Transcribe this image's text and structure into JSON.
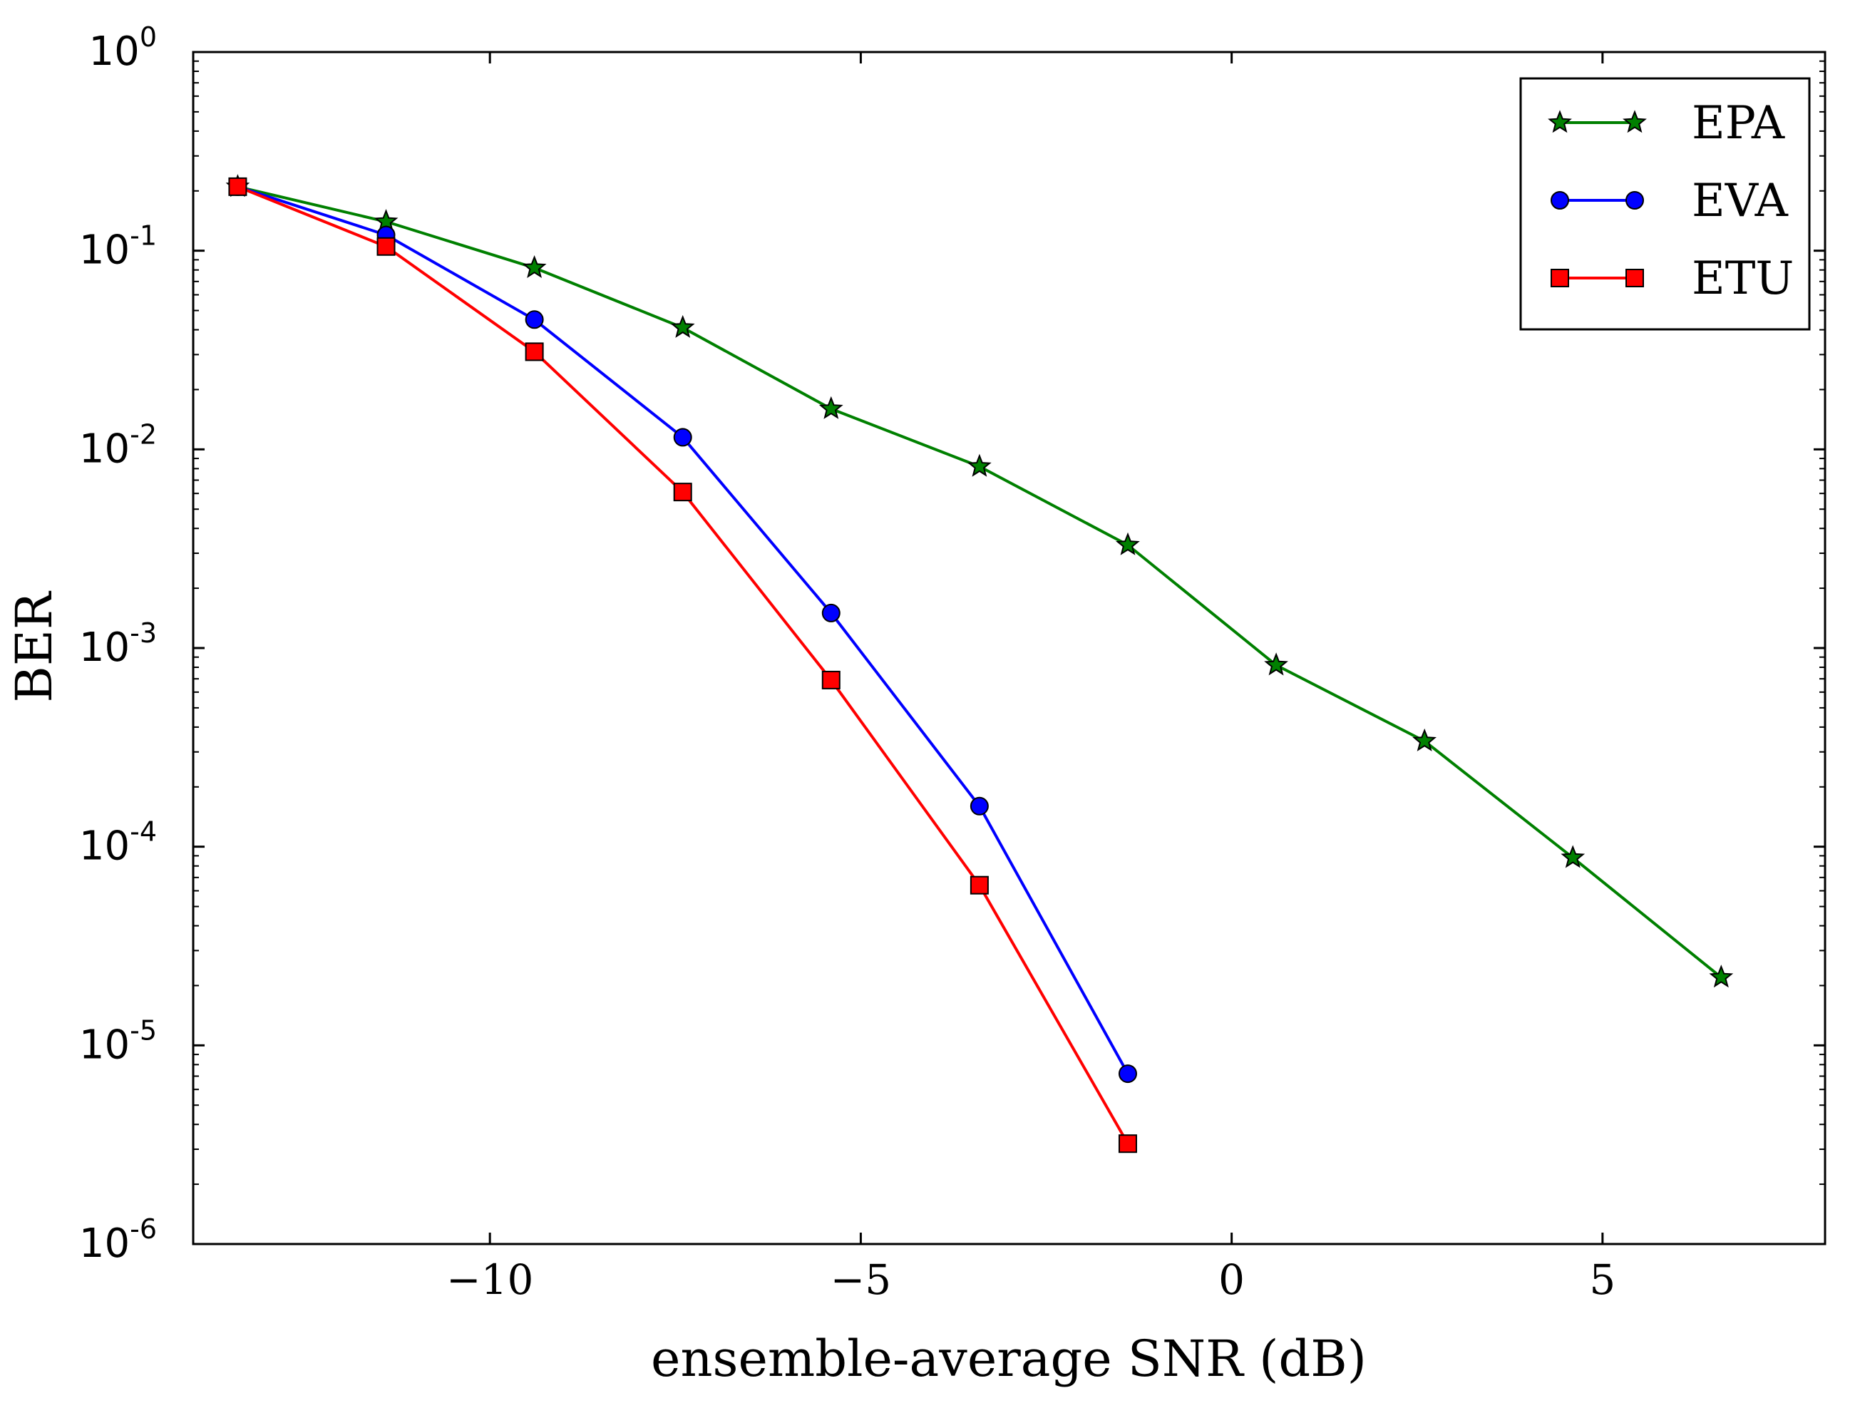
{
  "chart_data": {
    "type": "line",
    "title": "",
    "xlabel": "ensemble-average SNR (dB)",
    "ylabel": "BER",
    "xscale": "linear",
    "yscale": "log",
    "xlim": [
      -14,
      8
    ],
    "ylim": [
      1e-06,
      1
    ],
    "xticks": [
      -10,
      -5,
      0,
      5
    ],
    "xtick_labels": [
      "−10",
      "−5",
      "0",
      "5"
    ],
    "yticks": [
      {
        "value": 1.0,
        "base": "10",
        "exp": "0"
      },
      {
        "value": 0.1,
        "base": "10",
        "exp": "-1"
      },
      {
        "value": 0.01,
        "base": "10",
        "exp": "-2"
      },
      {
        "value": 0.001,
        "base": "10",
        "exp": "-3"
      },
      {
        "value": 0.0001,
        "base": "10",
        "exp": "-4"
      },
      {
        "value": 1e-05,
        "base": "10",
        "exp": "-5"
      },
      {
        "value": 1e-06,
        "base": "10",
        "exp": "-6"
      }
    ],
    "grid": false,
    "legend_position": "top-right",
    "series": [
      {
        "name": "EPA",
        "color": "#008000",
        "marker": "star",
        "x": [
          -13.4,
          -11.4,
          -9.4,
          -7.4,
          -5.4,
          -3.4,
          -1.4,
          0.6,
          2.6,
          4.6,
          6.6
        ],
        "y": [
          0.21,
          0.14,
          0.082,
          0.041,
          0.016,
          0.0082,
          0.0033,
          0.00082,
          0.00034,
          8.8e-05,
          2.2e-05
        ]
      },
      {
        "name": "EVA",
        "color": "#0000ff",
        "marker": "circle",
        "x": [
          -13.4,
          -11.4,
          -9.4,
          -7.4,
          -5.4,
          -3.4,
          -1.4
        ],
        "y": [
          0.21,
          0.12,
          0.045,
          0.0115,
          0.0015,
          0.00016,
          7.2e-06
        ]
      },
      {
        "name": "ETU",
        "color": "#ff0000",
        "marker": "square",
        "x": [
          -13.4,
          -11.4,
          -9.4,
          -7.4,
          -5.4,
          -3.4,
          -1.4
        ],
        "y": [
          0.21,
          0.105,
          0.031,
          0.0061,
          0.00069,
          6.4e-05,
          3.2e-06
        ]
      }
    ]
  }
}
